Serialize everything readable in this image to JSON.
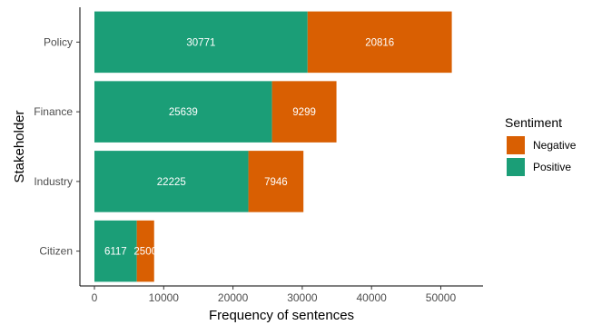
{
  "chart_data": {
    "type": "bar",
    "orientation": "horizontal",
    "stacked": true,
    "categories": [
      "Policy",
      "Finance",
      "Industry",
      "Citizen"
    ],
    "series": [
      {
        "name": "Positive",
        "values": [
          30771,
          25639,
          22225,
          6117
        ],
        "color": "#1b9e77"
      },
      {
        "name": "Negative",
        "values": [
          20816,
          9299,
          7946,
          2500
        ],
        "color": "#d95f02"
      }
    ],
    "xlabel": "Frequency of sentences",
    "ylabel": "Stakeholder",
    "xlim": [
      0,
      54000
    ],
    "xticks": [
      0,
      10000,
      20000,
      30000,
      40000,
      50000
    ],
    "grid": false,
    "legend": {
      "title": "Sentiment",
      "placement": "right",
      "entries": [
        {
          "label": "Negative",
          "color": "#d95f02"
        },
        {
          "label": "Positive",
          "color": "#1b9e77"
        }
      ]
    }
  }
}
